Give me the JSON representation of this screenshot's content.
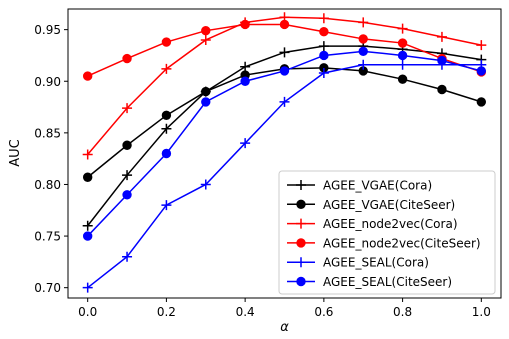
{
  "chart_data": {
    "type": "line",
    "xlabel": "α",
    "ylabel": "AUC",
    "xlim": [
      -0.05,
      1.05
    ],
    "ylim": [
      0.69,
      0.97
    ],
    "xticks": [
      0.0,
      0.2,
      0.4,
      0.6,
      0.8,
      1.0
    ],
    "xtick_labels": [
      "0.0",
      "0.2",
      "0.4",
      "0.6",
      "0.8",
      "1.0"
    ],
    "yticks": [
      0.7,
      0.75,
      0.8,
      0.85,
      0.9,
      0.95
    ],
    "ytick_labels": [
      "0.70",
      "0.75",
      "0.80",
      "0.85",
      "0.90",
      "0.95"
    ],
    "grid": false,
    "legend_position": "lower-right",
    "x": [
      0.0,
      0.1,
      0.2,
      0.3,
      0.4,
      0.5,
      0.6,
      0.7,
      0.8,
      0.9,
      1.0
    ],
    "series": [
      {
        "name": "AGEE_VGAE(Cora)",
        "color": "#000000",
        "marker": "plus",
        "values": [
          0.76,
          0.809,
          0.854,
          0.89,
          0.914,
          0.928,
          0.934,
          0.934,
          0.931,
          0.927,
          0.921
        ]
      },
      {
        "name": "AGEE_VGAE(CiteSeer)",
        "color": "#000000",
        "marker": "circle",
        "values": [
          0.807,
          0.838,
          0.867,
          0.89,
          0.906,
          0.912,
          0.913,
          0.91,
          0.902,
          0.892,
          0.88
        ]
      },
      {
        "name": "AGEE_node2vec(Cora)",
        "color": "#ff0000",
        "marker": "plus",
        "values": [
          0.829,
          0.874,
          0.912,
          0.94,
          0.957,
          0.962,
          0.961,
          0.957,
          0.951,
          0.943,
          0.935
        ]
      },
      {
        "name": "AGEE_node2vec(CiteSeer)",
        "color": "#ff0000",
        "marker": "circle",
        "values": [
          0.905,
          0.922,
          0.938,
          0.949,
          0.955,
          0.955,
          0.948,
          0.941,
          0.937,
          0.922,
          0.909
        ]
      },
      {
        "name": "AGEE_SEAL(Cora)",
        "color": "#0000ff",
        "marker": "plus",
        "values": [
          0.7,
          0.73,
          0.78,
          0.8,
          0.84,
          0.88,
          0.908,
          0.916,
          0.916,
          0.916,
          0.916
        ]
      },
      {
        "name": "AGEE_SEAL(CiteSeer)",
        "color": "#0000ff",
        "marker": "circle",
        "values": [
          0.75,
          0.79,
          0.83,
          0.88,
          0.9,
          0.91,
          0.925,
          0.929,
          0.925,
          0.92,
          0.91
        ]
      }
    ]
  }
}
